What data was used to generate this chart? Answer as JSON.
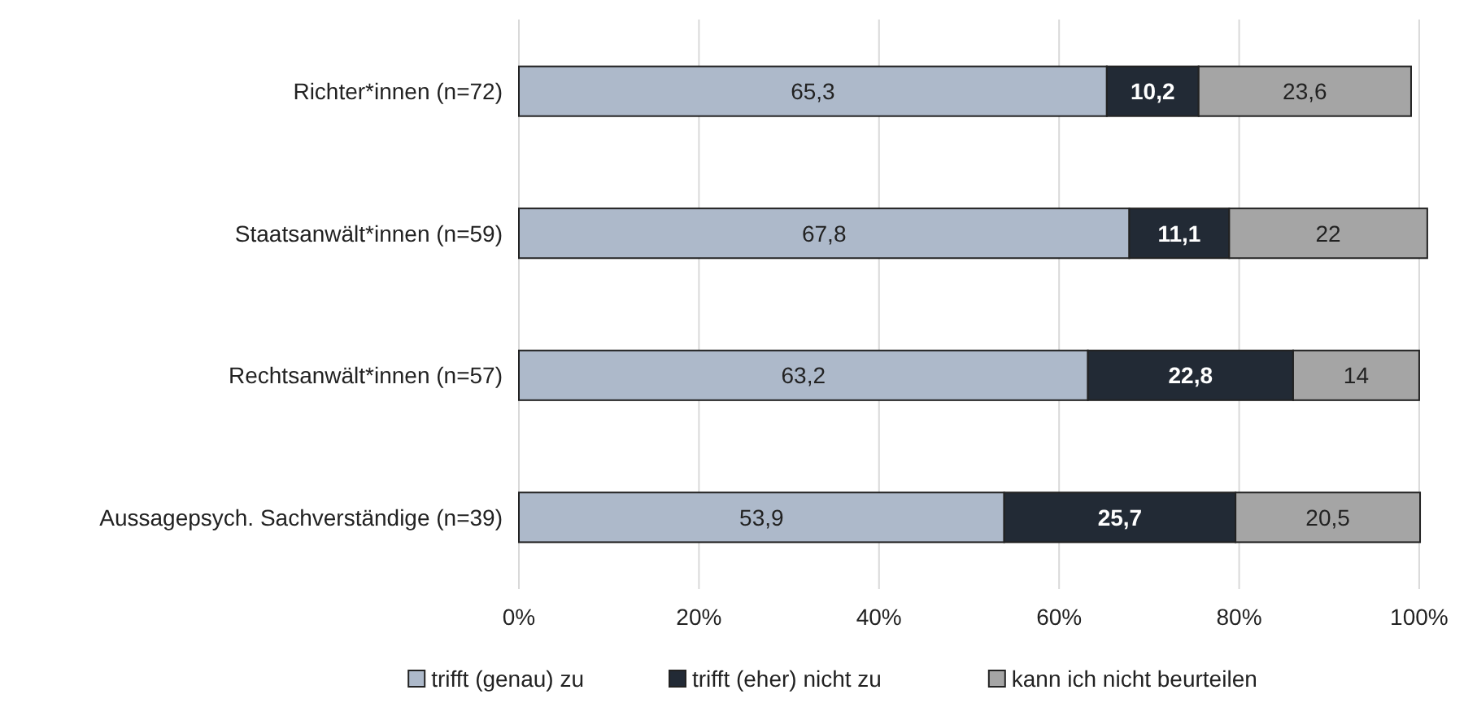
{
  "chart_data": {
    "type": "bar",
    "orientation": "horizontal",
    "stacked": true,
    "grid": "x",
    "legend": "bottom",
    "categories": [
      "Richter*innen (n=72)",
      "Staatsanwält*innen (n=59)",
      "Rechtsanwält*innen (n=57)",
      "Aussagepsych. Sachverständige (n=39)"
    ],
    "series": [
      {
        "name": "trifft (genau) zu",
        "color": "#adb9ca",
        "values": [
          65.3,
          67.8,
          63.2,
          53.9
        ],
        "value_labels": [
          "65,3",
          "67,8",
          "63,2",
          "53,9"
        ]
      },
      {
        "name": "trifft (eher) nicht zu",
        "color": "#222a35",
        "values": [
          10.2,
          11.1,
          22.8,
          25.7
        ],
        "value_labels": [
          "10,2",
          "11,1",
          "22,8",
          "25,7"
        ]
      },
      {
        "name": "kann ich nicht beurteilen",
        "color": "#a5a5a5",
        "values": [
          23.6,
          22,
          14,
          20.5
        ],
        "value_labels": [
          "23,6",
          "22",
          "14",
          "20,5"
        ]
      }
    ],
    "xlim": [
      0,
      101
    ],
    "xticks": [
      {
        "value": 0,
        "label": "0%"
      },
      {
        "value": 20,
        "label": "20%"
      },
      {
        "value": 40,
        "label": "40%"
      },
      {
        "value": 60,
        "label": "60%"
      },
      {
        "value": 80,
        "label": "80%"
      },
      {
        "value": 100,
        "label": "100%"
      }
    ]
  }
}
